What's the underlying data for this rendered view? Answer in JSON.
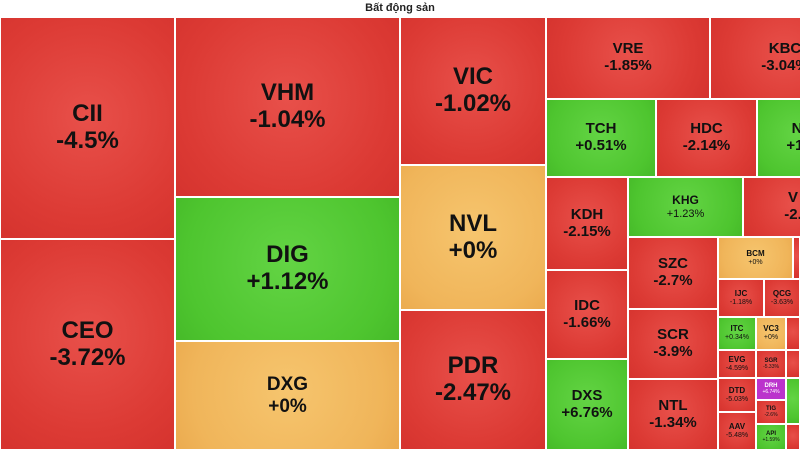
{
  "title": "Bất động sản",
  "colors": {
    "down": "#dc3a34",
    "up": "#4ec52f",
    "flat": "#f0b55a",
    "ceiling": "#bb33cc"
  },
  "tiles": {
    "cii": {
      "symbol": "CII",
      "change": "-4.5%",
      "trend": "down"
    },
    "ceo": {
      "symbol": "CEO",
      "change": "-3.72%",
      "trend": "down"
    },
    "vhm": {
      "symbol": "VHM",
      "change": "-1.04%",
      "trend": "down"
    },
    "dig": {
      "symbol": "DIG",
      "change": "+1.12%",
      "trend": "up"
    },
    "dxg": {
      "symbol": "DXG",
      "change": "+0%",
      "trend": "flat"
    },
    "vic": {
      "symbol": "VIC",
      "change": "-1.02%",
      "trend": "down"
    },
    "nvl": {
      "symbol": "NVL",
      "change": "+0%",
      "trend": "flat"
    },
    "pdr": {
      "symbol": "PDR",
      "change": "-2.47%",
      "trend": "down"
    },
    "vre": {
      "symbol": "VRE",
      "change": "-1.85%",
      "trend": "down"
    },
    "kbc": {
      "symbol": "KBC",
      "change": "-3.04%",
      "trend": "down"
    },
    "tch": {
      "symbol": "TCH",
      "change": "+0.51%",
      "trend": "up"
    },
    "hdc": {
      "symbol": "HDC",
      "change": "-2.14%",
      "trend": "down"
    },
    "n_cut": {
      "symbol": "N",
      "change": "+1.",
      "trend": "up"
    },
    "kdh": {
      "symbol": "KDH",
      "change": "-2.15%",
      "trend": "down"
    },
    "khg": {
      "symbol": "KHG",
      "change": "+1.23%",
      "trend": "up"
    },
    "v_cut": {
      "symbol": "V",
      "change": "-2.",
      "trend": "down"
    },
    "szc": {
      "symbol": "SZC",
      "change": "-2.7%",
      "trend": "down"
    },
    "bcm": {
      "symbol": "BCM",
      "change": "+0%",
      "trend": "flat"
    },
    "idc": {
      "symbol": "IDC",
      "change": "-1.66%",
      "trend": "down"
    },
    "ijc": {
      "symbol": "IJC",
      "change": "-1.18%",
      "trend": "down"
    },
    "qcg": {
      "symbol": "QCG",
      "change": "-3.63%",
      "trend": "down"
    },
    "scr": {
      "symbol": "SCR",
      "change": "-3.9%",
      "trend": "down"
    },
    "itc": {
      "symbol": "ITC",
      "change": "+0.34%",
      "trend": "up"
    },
    "vc3": {
      "symbol": "VC3",
      "change": "+0%",
      "trend": "flat"
    },
    "dxs": {
      "symbol": "DXS",
      "change": "+6.76%",
      "trend": "up"
    },
    "evg": {
      "symbol": "EVG",
      "change": "-4.59%",
      "trend": "down"
    },
    "sgr": {
      "symbol": "SGR",
      "change": "-5.33%",
      "trend": "down"
    },
    "ntl": {
      "symbol": "NTL",
      "change": "-1.34%",
      "trend": "down"
    },
    "dtd": {
      "symbol": "DTD",
      "change": "-5.03%",
      "trend": "down"
    },
    "drh": {
      "symbol": "DRH",
      "change": "+6.74%",
      "trend": "ceiling"
    },
    "tig": {
      "symbol": "TIG",
      "change": "-2.6%",
      "trend": "down"
    },
    "aav": {
      "symbol": "AAV",
      "change": "-5.48%",
      "trend": "down"
    },
    "api": {
      "symbol": "API",
      "change": "+1.59%",
      "trend": "up"
    }
  }
}
